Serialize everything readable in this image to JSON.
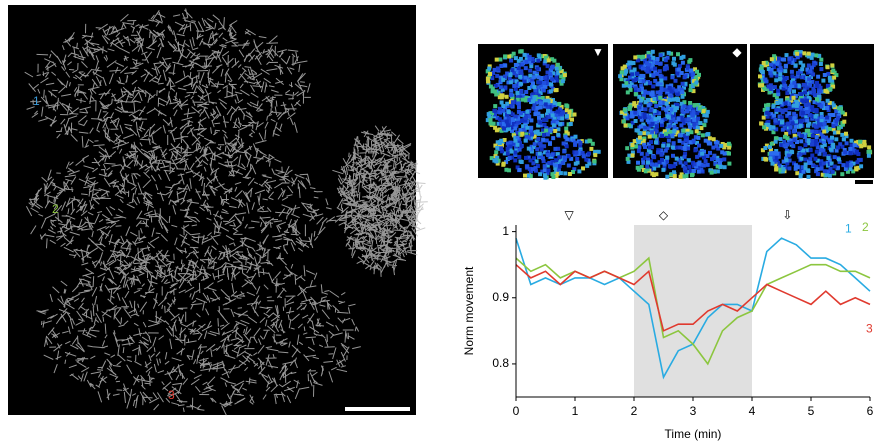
{
  "image_labels": [
    {
      "text": "1",
      "color": "#3a9ad9"
    },
    {
      "text": "2",
      "color": "#8cc63f"
    },
    {
      "text": "3",
      "color": "#e03a2f"
    }
  ],
  "panel_symbols": [
    "▼",
    "◆"
  ],
  "chart_data": {
    "type": "line",
    "x": [
      0,
      0.25,
      0.5,
      0.75,
      1,
      1.25,
      1.5,
      1.75,
      2,
      2.25,
      2.5,
      2.75,
      3,
      3.25,
      3.5,
      3.75,
      4,
      4.25,
      4.5,
      4.75,
      5,
      5.25,
      5.5,
      5.75,
      6
    ],
    "series": [
      {
        "name": "1",
        "color": "#29abe2",
        "values": [
          0.99,
          0.92,
          0.93,
          0.92,
          0.93,
          0.93,
          0.92,
          0.93,
          0.91,
          0.89,
          0.78,
          0.82,
          0.83,
          0.87,
          0.89,
          0.89,
          0.88,
          0.97,
          0.99,
          0.98,
          0.96,
          0.96,
          0.95,
          0.93,
          0.91
        ]
      },
      {
        "name": "2",
        "color": "#8cc63f",
        "values": [
          0.96,
          0.94,
          0.95,
          0.93,
          0.94,
          0.93,
          0.94,
          0.93,
          0.94,
          0.96,
          0.84,
          0.85,
          0.83,
          0.8,
          0.85,
          0.87,
          0.88,
          0.92,
          0.93,
          0.94,
          0.95,
          0.95,
          0.94,
          0.94,
          0.93
        ]
      },
      {
        "name": "3",
        "color": "#e03a2f",
        "values": [
          0.95,
          0.93,
          0.94,
          0.92,
          0.94,
          0.93,
          0.94,
          0.93,
          0.92,
          0.94,
          0.85,
          0.86,
          0.86,
          0.88,
          0.89,
          0.88,
          0.9,
          0.92,
          0.91,
          0.9,
          0.89,
          0.91,
          0.89,
          0.9,
          0.89
        ]
      }
    ],
    "xlim": [
      0,
      6
    ],
    "ylim": [
      0.75,
      1.01
    ],
    "xticks": [
      0,
      1,
      2,
      3,
      4,
      5,
      6
    ],
    "yticks": [
      0.8,
      0.9,
      1
    ],
    "xlabel": "Time (min)",
    "ylabel": "Norm movement",
    "highlight": [
      2,
      4
    ],
    "markers": [
      {
        "x": 0.9,
        "symbol": "▽"
      },
      {
        "x": 2.5,
        "symbol": "◇"
      },
      {
        "x": 4.6,
        "symbol": "⇩"
      }
    ]
  }
}
